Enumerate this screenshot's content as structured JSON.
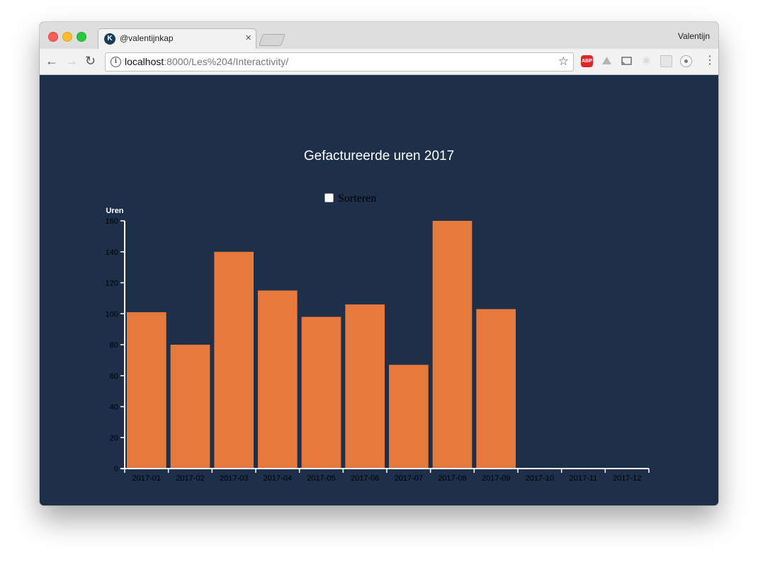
{
  "browser": {
    "tab_title": "@valentijnkap",
    "tab_favicon_letter": "K",
    "tab_close": "×",
    "profile_name": "Valentijn",
    "url_host": "localhost",
    "url_path": ":8000/Les%204/Interactivity/",
    "abp_label": "ABP",
    "icons": [
      "back-arrow-icon",
      "forward-arrow-icon",
      "reload-icon",
      "info-icon",
      "star-icon",
      "adblock-icon",
      "drive-icon",
      "cast-icon",
      "react-icon",
      "extension-icon",
      "record-icon",
      "menu-icon"
    ]
  },
  "page": {
    "sort_label": "Sorteren",
    "sort_checked": false
  },
  "colors": {
    "background": "#1d2f49",
    "bar": "#e67a3c",
    "axis": "#ffffff",
    "tick_text": "#000000",
    "title": "#ffffff"
  },
  "chart_data": {
    "type": "bar",
    "title": "Gefactureerde uren 2017",
    "xlabel": "",
    "ylabel": "Uren",
    "categories": [
      "2017-01",
      "2017-02",
      "2017-03",
      "2017-04",
      "2017-05",
      "2017-06",
      "2017-07",
      "2017-08",
      "2017-09",
      "2017-10",
      "2017-11",
      "2017-12"
    ],
    "values": [
      101,
      80,
      140,
      115,
      98,
      106,
      67,
      160,
      103,
      null,
      null,
      null
    ],
    "ylim": [
      0,
      160
    ],
    "yticks": [
      0,
      20,
      40,
      60,
      80,
      100,
      120,
      140,
      160
    ],
    "grid": false,
    "legend": "none"
  }
}
